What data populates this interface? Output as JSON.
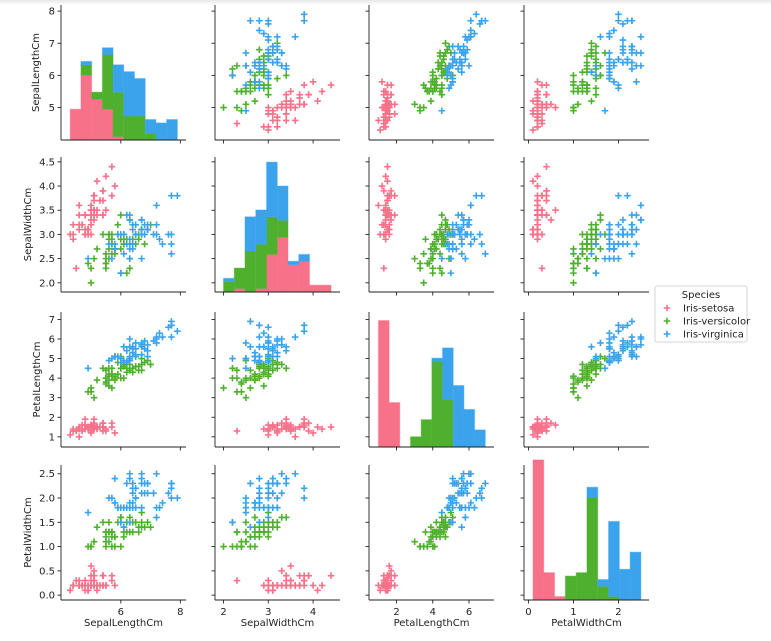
{
  "chart_data": {
    "type": "scatter",
    "kind": "pairplot",
    "marker": "+",
    "variables": [
      "SepalLengthCm",
      "SepalWidthCm",
      "PetalLengthCm",
      "PetalWidthCm"
    ],
    "diagonal": {
      "type": "histogram",
      "stacked": true,
      "bins": 10,
      "shared_ylim": [
        0,
        39.5
      ]
    },
    "axis_ranges": {
      "SepalLengthCm": [
        3.99,
        8.19
      ],
      "SepalWidthCm": [
        1.81,
        4.6
      ],
      "PetalLengthCm": [
        0.48,
        7.38
      ],
      "PetalWidthCm": [
        -0.1,
        2.68
      ]
    },
    "x_ticks": {
      "SepalLengthCm": {
        "values": [
          6,
          8
        ],
        "labels": [
          "6",
          "8"
        ]
      },
      "SepalWidthCm": {
        "values": [
          2,
          3,
          4
        ],
        "labels": [
          "2",
          "3",
          "4"
        ]
      },
      "PetalLengthCm": {
        "values": [
          2,
          4,
          6
        ],
        "labels": [
          "2",
          "4",
          "6"
        ]
      },
      "PetalWidthCm": {
        "values": [
          0,
          1,
          2
        ],
        "labels": [
          "0",
          "1",
          "2"
        ]
      }
    },
    "y_ticks": {
      "SepalLengthCm": {
        "values": [
          5,
          6,
          7,
          8
        ],
        "labels": [
          "5",
          "6",
          "7",
          "8"
        ]
      },
      "SepalWidthCm": {
        "values": [
          2.0,
          2.5,
          3.0,
          3.5,
          4.0,
          4.5
        ],
        "labels": [
          "2.0",
          "2.5",
          "3.0",
          "3.5",
          "4.0",
          "4.5"
        ]
      },
      "PetalLengthCm": {
        "values": [
          1,
          2,
          3,
          4,
          5,
          6,
          7
        ],
        "labels": [
          "1",
          "2",
          "3",
          "4",
          "5",
          "6",
          "7"
        ]
      },
      "PetalWidthCm": {
        "values": [
          0.0,
          0.5,
          1.0,
          1.5,
          2.0,
          2.5
        ],
        "labels": [
          "0.0",
          "0.5",
          "1.0",
          "1.5",
          "2.0",
          "2.5"
        ]
      }
    },
    "legend": {
      "title": "Species",
      "placement": "right",
      "entries": [
        "Iris-setosa",
        "Iris-versicolor",
        "Iris-virginica"
      ]
    },
    "colors": {
      "Iris-setosa": "#f77189",
      "Iris-versicolor": "#4fb02e",
      "Iris-virginica": "#3ba3ec"
    },
    "grid": false,
    "series": [
      {
        "name": "Iris-setosa",
        "rows": [
          [
            5.1,
            3.5,
            1.4,
            0.2
          ],
          [
            4.9,
            3.0,
            1.4,
            0.2
          ],
          [
            4.7,
            3.2,
            1.3,
            0.2
          ],
          [
            4.6,
            3.1,
            1.5,
            0.2
          ],
          [
            5.0,
            3.6,
            1.4,
            0.2
          ],
          [
            5.4,
            3.9,
            1.7,
            0.4
          ],
          [
            4.6,
            3.4,
            1.4,
            0.3
          ],
          [
            5.0,
            3.4,
            1.5,
            0.2
          ],
          [
            4.4,
            2.9,
            1.4,
            0.2
          ],
          [
            4.9,
            3.1,
            1.5,
            0.1
          ],
          [
            5.4,
            3.7,
            1.5,
            0.2
          ],
          [
            4.8,
            3.4,
            1.6,
            0.2
          ],
          [
            4.8,
            3.0,
            1.4,
            0.1
          ],
          [
            4.3,
            3.0,
            1.1,
            0.1
          ],
          [
            5.8,
            4.0,
            1.2,
            0.2
          ],
          [
            5.7,
            4.4,
            1.5,
            0.4
          ],
          [
            5.4,
            3.9,
            1.3,
            0.4
          ],
          [
            5.1,
            3.5,
            1.4,
            0.3
          ],
          [
            5.7,
            3.8,
            1.7,
            0.3
          ],
          [
            5.1,
            3.8,
            1.5,
            0.3
          ],
          [
            5.4,
            3.4,
            1.7,
            0.2
          ],
          [
            5.1,
            3.7,
            1.5,
            0.4
          ],
          [
            4.6,
            3.6,
            1.0,
            0.2
          ],
          [
            5.1,
            3.3,
            1.7,
            0.5
          ],
          [
            4.8,
            3.4,
            1.9,
            0.2
          ],
          [
            5.0,
            3.0,
            1.6,
            0.2
          ],
          [
            5.0,
            3.4,
            1.6,
            0.4
          ],
          [
            5.2,
            3.5,
            1.5,
            0.2
          ],
          [
            5.2,
            3.4,
            1.4,
            0.2
          ],
          [
            4.7,
            3.2,
            1.6,
            0.2
          ],
          [
            4.8,
            3.1,
            1.6,
            0.2
          ],
          [
            5.4,
            3.4,
            1.5,
            0.4
          ],
          [
            5.2,
            4.1,
            1.5,
            0.1
          ],
          [
            5.5,
            4.2,
            1.4,
            0.2
          ],
          [
            4.9,
            3.1,
            1.5,
            0.1
          ],
          [
            5.0,
            3.2,
            1.2,
            0.2
          ],
          [
            5.5,
            3.5,
            1.3,
            0.2
          ],
          [
            4.9,
            3.1,
            1.5,
            0.1
          ],
          [
            4.4,
            3.0,
            1.3,
            0.2
          ],
          [
            5.1,
            3.4,
            1.5,
            0.2
          ],
          [
            5.0,
            3.5,
            1.3,
            0.3
          ],
          [
            4.5,
            2.3,
            1.3,
            0.3
          ],
          [
            4.4,
            3.2,
            1.3,
            0.2
          ],
          [
            5.0,
            3.5,
            1.6,
            0.6
          ],
          [
            5.1,
            3.8,
            1.9,
            0.4
          ],
          [
            4.8,
            3.0,
            1.4,
            0.3
          ],
          [
            5.1,
            3.8,
            1.6,
            0.2
          ],
          [
            4.6,
            3.2,
            1.4,
            0.2
          ],
          [
            5.3,
            3.7,
            1.5,
            0.2
          ],
          [
            5.0,
            3.3,
            1.4,
            0.2
          ]
        ]
      },
      {
        "name": "Iris-versicolor",
        "rows": [
          [
            7.0,
            3.2,
            4.7,
            1.4
          ],
          [
            6.4,
            3.2,
            4.5,
            1.5
          ],
          [
            6.9,
            3.1,
            4.9,
            1.5
          ],
          [
            5.5,
            2.3,
            4.0,
            1.3
          ],
          [
            6.5,
            2.8,
            4.6,
            1.5
          ],
          [
            5.7,
            2.8,
            4.5,
            1.3
          ],
          [
            6.3,
            3.3,
            4.7,
            1.6
          ],
          [
            4.9,
            2.4,
            3.3,
            1.0
          ],
          [
            6.6,
            2.9,
            4.6,
            1.3
          ],
          [
            5.2,
            2.7,
            3.9,
            1.4
          ],
          [
            5.0,
            2.0,
            3.5,
            1.0
          ],
          [
            5.9,
            3.0,
            4.2,
            1.5
          ],
          [
            6.0,
            2.2,
            4.0,
            1.0
          ],
          [
            6.1,
            2.9,
            4.7,
            1.4
          ],
          [
            5.6,
            2.9,
            3.6,
            1.3
          ],
          [
            6.7,
            3.1,
            4.4,
            1.4
          ],
          [
            5.6,
            3.0,
            4.5,
            1.5
          ],
          [
            5.8,
            2.7,
            4.1,
            1.0
          ],
          [
            6.2,
            2.2,
            4.5,
            1.5
          ],
          [
            5.6,
            2.5,
            3.9,
            1.1
          ],
          [
            5.9,
            3.2,
            4.8,
            1.8
          ],
          [
            6.1,
            2.8,
            4.0,
            1.3
          ],
          [
            6.3,
            2.5,
            4.9,
            1.5
          ],
          [
            6.1,
            2.8,
            4.7,
            1.2
          ],
          [
            6.4,
            2.9,
            4.3,
            1.3
          ],
          [
            6.6,
            3.0,
            4.4,
            1.4
          ],
          [
            6.8,
            2.8,
            4.8,
            1.4
          ],
          [
            6.7,
            3.0,
            5.0,
            1.7
          ],
          [
            6.0,
            2.9,
            4.5,
            1.5
          ],
          [
            5.7,
            2.6,
            3.5,
            1.0
          ],
          [
            5.5,
            2.4,
            3.8,
            1.1
          ],
          [
            5.5,
            2.4,
            3.7,
            1.0
          ],
          [
            5.8,
            2.7,
            3.9,
            1.2
          ],
          [
            6.0,
            2.7,
            5.1,
            1.6
          ],
          [
            5.4,
            3.0,
            4.5,
            1.5
          ],
          [
            6.0,
            3.4,
            4.5,
            1.6
          ],
          [
            6.7,
            3.1,
            4.7,
            1.5
          ],
          [
            6.3,
            2.3,
            4.4,
            1.3
          ],
          [
            5.6,
            3.0,
            4.1,
            1.3
          ],
          [
            5.5,
            2.5,
            4.0,
            1.3
          ],
          [
            5.5,
            2.6,
            4.4,
            1.2
          ],
          [
            6.1,
            3.0,
            4.6,
            1.4
          ],
          [
            5.8,
            2.6,
            4.0,
            1.2
          ],
          [
            5.0,
            2.3,
            3.3,
            1.0
          ],
          [
            5.6,
            2.7,
            4.2,
            1.3
          ],
          [
            5.7,
            3.0,
            4.2,
            1.2
          ],
          [
            5.7,
            2.9,
            4.2,
            1.3
          ],
          [
            6.2,
            2.9,
            4.3,
            1.3
          ],
          [
            5.1,
            2.5,
            3.0,
            1.1
          ],
          [
            5.7,
            2.8,
            4.1,
            1.3
          ]
        ]
      },
      {
        "name": "Iris-virginica",
        "rows": [
          [
            6.3,
            3.3,
            6.0,
            2.5
          ],
          [
            5.8,
            2.7,
            5.1,
            1.9
          ],
          [
            7.1,
            3.0,
            5.9,
            2.1
          ],
          [
            6.3,
            2.9,
            5.6,
            1.8
          ],
          [
            6.5,
            3.0,
            5.8,
            2.2
          ],
          [
            7.6,
            3.0,
            6.6,
            2.1
          ],
          [
            4.9,
            2.5,
            4.5,
            1.7
          ],
          [
            7.3,
            2.9,
            6.3,
            1.8
          ],
          [
            6.7,
            2.5,
            5.8,
            1.8
          ],
          [
            7.2,
            3.6,
            6.1,
            2.5
          ],
          [
            6.5,
            3.2,
            5.1,
            2.0
          ],
          [
            6.4,
            2.7,
            5.3,
            1.9
          ],
          [
            6.8,
            3.0,
            5.5,
            2.1
          ],
          [
            5.7,
            2.5,
            5.0,
            2.0
          ],
          [
            5.8,
            2.8,
            5.1,
            2.4
          ],
          [
            6.4,
            3.2,
            5.3,
            2.3
          ],
          [
            6.5,
            3.0,
            5.5,
            1.8
          ],
          [
            7.7,
            3.8,
            6.7,
            2.2
          ],
          [
            7.7,
            2.6,
            6.9,
            2.3
          ],
          [
            6.0,
            2.2,
            5.0,
            1.5
          ],
          [
            6.9,
            3.2,
            5.7,
            2.3
          ],
          [
            5.6,
            2.8,
            4.9,
            2.0
          ],
          [
            7.7,
            2.8,
            6.7,
            2.0
          ],
          [
            6.3,
            2.7,
            4.9,
            1.8
          ],
          [
            6.7,
            3.3,
            5.7,
            2.1
          ],
          [
            7.2,
            3.2,
            6.0,
            1.8
          ],
          [
            6.2,
            2.8,
            4.8,
            1.8
          ],
          [
            6.1,
            3.0,
            4.9,
            1.8
          ],
          [
            6.4,
            2.8,
            5.6,
            2.1
          ],
          [
            7.2,
            3.0,
            5.8,
            1.6
          ],
          [
            7.4,
            2.8,
            6.1,
            1.9
          ],
          [
            7.9,
            3.8,
            6.4,
            2.0
          ],
          [
            6.4,
            2.8,
            5.6,
            2.2
          ],
          [
            6.3,
            2.8,
            5.1,
            1.5
          ],
          [
            6.1,
            2.6,
            5.6,
            1.4
          ],
          [
            7.7,
            3.0,
            6.1,
            2.3
          ],
          [
            6.3,
            3.4,
            5.6,
            2.4
          ],
          [
            6.4,
            3.1,
            5.5,
            1.8
          ],
          [
            6.0,
            3.0,
            4.8,
            1.8
          ],
          [
            6.9,
            3.1,
            5.4,
            2.1
          ],
          [
            6.7,
            3.1,
            5.6,
            2.4
          ],
          [
            6.9,
            3.1,
            5.1,
            2.3
          ],
          [
            5.8,
            2.7,
            5.1,
            1.9
          ],
          [
            6.8,
            3.2,
            5.9,
            2.3
          ],
          [
            6.7,
            3.3,
            5.7,
            2.5
          ],
          [
            6.7,
            3.0,
            5.2,
            2.3
          ],
          [
            6.3,
            2.5,
            5.0,
            1.9
          ],
          [
            6.5,
            3.0,
            5.2,
            2.0
          ],
          [
            6.2,
            3.4,
            5.4,
            2.3
          ],
          [
            5.9,
            3.0,
            5.1,
            1.8
          ]
        ]
      }
    ]
  }
}
